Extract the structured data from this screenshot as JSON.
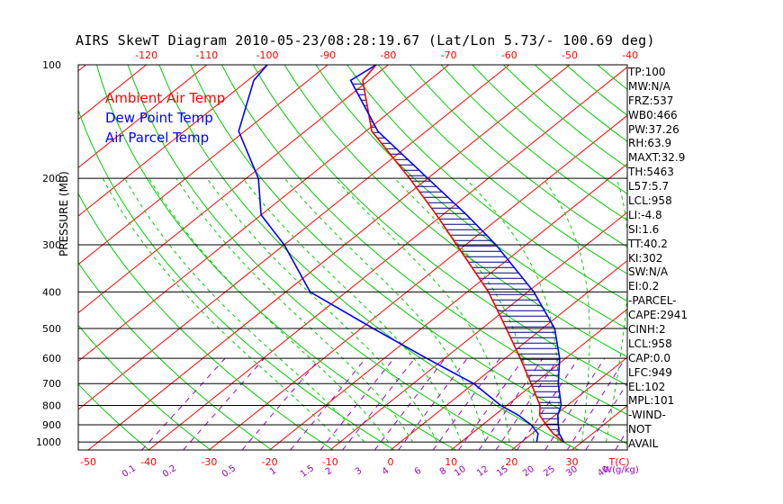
{
  "title": "AIRS SkewT Diagram 2010-05-23/08:28:19.67 (Lat/Lon 5.73/- 100.69 deg)",
  "legend": [
    {
      "label": "Ambient Air Temp",
      "color": "#ff0000"
    },
    {
      "label": "Dew Point Temp",
      "color": "#0000ff"
    },
    {
      "label": "Air Parcel Temp",
      "color": "#0000ff"
    }
  ],
  "stats": [
    "TP:100",
    "MW:N/A",
    "FRZ:537",
    "WB0:466",
    "PW:37.26",
    "RH:63.9",
    "MAXT:32.9",
    "TH:5463",
    "L57:5.7",
    "LCL:958",
    "LI:-4.8",
    "SI:1.6",
    "TT:40.2",
    "KI:302",
    "SW:N/A",
    "EI:0.2",
    "-PARCEL-",
    "CAPE:2941",
    "CINH:2",
    "LCL:958",
    "CAP:0.0",
    "LFC:949",
    "EL:102",
    "MPL:101",
    "-WIND-",
    "NOT",
    "AVAIL"
  ],
  "colors": {
    "isotherm": "#ff0000",
    "dry_adiabat": "#00cc00",
    "moist_adiabat": "#00cc00",
    "mixing_ratio": "#9900cc",
    "ambient": "#ff0000",
    "dewpoint": "#0000ff",
    "parcel": "#0000ff",
    "hatch": "#000080",
    "axis_labels": "#ff0000"
  },
  "chart_data": {
    "type": "line",
    "title": "AIRS SkewT Diagram 2010-05-23/08:28:19.67 (Lat/Lon 5.73/- 100.69 deg)",
    "ylabel": "PRESSURE (MB)",
    "xlabel": "T(C)",
    "mixing_ratio_unit": "W(g/kg)",
    "y_scale": "log",
    "ylim": [
      1050,
      100
    ],
    "pressure_ticks": [
      100,
      200,
      300,
      400,
      500,
      600,
      700,
      800,
      900,
      1000
    ],
    "bottom_temp_ticks": [
      -50,
      -40,
      -30,
      -20,
      -10,
      0,
      10,
      20,
      30
    ],
    "top_temp_ticks": [
      -120,
      -110,
      -100,
      -90,
      -80,
      -70,
      -60,
      -50,
      -40
    ],
    "mixing_ratio_ticks": [
      "0.1",
      "0.2",
      "0.5",
      "1",
      "1.5",
      "2",
      "3",
      "4",
      "6",
      "8",
      "10",
      "12",
      "15",
      "20",
      "25",
      "30",
      "40"
    ],
    "series": [
      {
        "name": "Ambient Air Temp",
        "p": [
          1000,
          950,
          900,
          850,
          800,
          700,
          600,
          500,
          400,
          300,
          250,
          200,
          150,
          110,
          100
        ],
        "t": [
          27,
          23.5,
          20.5,
          17.5,
          15.5,
          9.5,
          2.5,
          -6,
          -16.5,
          -31.5,
          -41,
          -53,
          -69,
          -81,
          -82
        ]
      },
      {
        "name": "Dew Point Temp",
        "p": [
          1000,
          950,
          900,
          850,
          800,
          700,
          600,
          500,
          400,
          300,
          250,
          200,
          150,
          110,
          100
        ],
        "t": [
          22.5,
          21,
          18,
          14,
          9,
          0,
          -13,
          -28,
          -46,
          -60,
          -70,
          -78,
          -91,
          -99,
          -100
        ]
      },
      {
        "name": "Air Parcel Temp",
        "p": [
          1000,
          950,
          900,
          850,
          800,
          700,
          600,
          500,
          400,
          300,
          250,
          200,
          150,
          110,
          100
        ],
        "t": [
          27,
          24.5,
          22.5,
          20.5,
          19,
          14,
          9,
          2,
          -9,
          -25,
          -36,
          -50,
          -68,
          -83,
          -82
        ]
      }
    ]
  }
}
